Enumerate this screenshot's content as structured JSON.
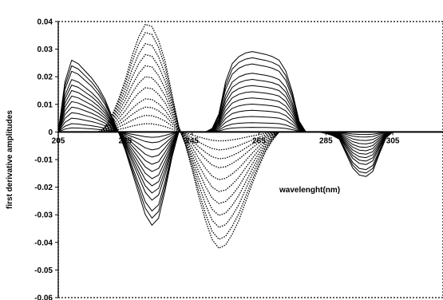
{
  "chart_data": {
    "type": "line",
    "title": "",
    "xlabel": "wavelenght(nm)",
    "ylabel": "first derivative amplitudes",
    "xlim": [
      205,
      320
    ],
    "ylim": [
      -0.06,
      0.04
    ],
    "x_ticks": [
      205,
      225,
      245,
      265,
      285,
      305
    ],
    "x_tick_labels": [
      "205",
      "225",
      "245",
      "265",
      "285",
      "305"
    ],
    "y_ticks": [
      0.04,
      0.03,
      0.02,
      0.01,
      0,
      -0.01,
      -0.02,
      -0.03,
      -0.04,
      -0.05,
      -0.06
    ],
    "y_tick_labels": [
      "0.04",
      "0.03",
      "0.02",
      "0.01",
      "0",
      "-0.01",
      "-0.02",
      "-0.03",
      "-0.04",
      "-0.05",
      "-0.06"
    ],
    "plot_border": "dotted",
    "grid": false,
    "legend": "none",
    "colors": {
      "series": "#000000",
      "background": "#ffffff"
    },
    "families": [
      {
        "style": "solid",
        "x": [
          205,
          207,
          209,
          211,
          213,
          215,
          217,
          219,
          221,
          223,
          225,
          227,
          229,
          231,
          233,
          235,
          237,
          239,
          241,
          243,
          245,
          247,
          249,
          251,
          253,
          255,
          257,
          259,
          261,
          263,
          265,
          267,
          269,
          271,
          273,
          275,
          277,
          279,
          281,
          283,
          285,
          287,
          289,
          291,
          293,
          295,
          297,
          299,
          301,
          303,
          305,
          307,
          309,
          311,
          313,
          315,
          317,
          320
        ],
        "shape": [
          0.0,
          0.7,
          1.0,
          0.95,
          0.85,
          0.75,
          0.62,
          0.45,
          0.22,
          0.0,
          -0.25,
          -0.55,
          -0.85,
          -1.15,
          -1.3,
          -1.2,
          -0.8,
          -0.35,
          0.0,
          0.0,
          0.0,
          0.0,
          0.0,
          0.05,
          0.25,
          0.7,
          0.95,
          1.05,
          1.1,
          1.12,
          1.1,
          1.08,
          1.05,
          1.0,
          0.85,
          0.55,
          0.15,
          0.0,
          0.0,
          0.0,
          -0.02,
          -0.05,
          -0.1,
          -0.3,
          -0.5,
          -0.6,
          -0.62,
          -0.55,
          -0.3,
          -0.08,
          0.0,
          0.0,
          0.0,
          0.0,
          0.0,
          0.0,
          0.0,
          0.0
        ],
        "amplitudes": [
          0.026,
          0.024,
          0.022,
          0.019,
          0.017,
          0.015,
          0.013,
          0.011,
          0.009,
          0.007,
          0.005,
          0.003,
          0.0015
        ]
      },
      {
        "style": "dotted",
        "x": [
          205,
          207,
          209,
          211,
          213,
          215,
          217,
          219,
          221,
          223,
          225,
          227,
          229,
          231,
          233,
          235,
          237,
          239,
          241,
          243,
          245,
          247,
          249,
          251,
          253,
          255,
          257,
          259,
          261,
          263,
          265,
          267,
          269,
          271,
          273,
          275,
          277,
          279,
          281,
          283,
          285,
          287,
          289,
          291,
          293,
          295,
          297,
          299,
          301,
          303,
          305,
          307,
          309,
          311,
          313,
          315,
          317,
          320
        ],
        "shape": [
          0.0,
          0.0,
          0.0,
          0.0,
          0.0,
          0.0,
          0.0,
          0.05,
          0.15,
          0.3,
          0.48,
          0.7,
          0.88,
          1.0,
          0.98,
          0.85,
          0.65,
          0.35,
          0.05,
          -0.12,
          -0.35,
          -0.6,
          -0.82,
          -1.0,
          -1.08,
          -1.05,
          -0.95,
          -0.82,
          -0.65,
          -0.48,
          -0.32,
          -0.18,
          -0.08,
          0.0,
          0.0,
          0.0,
          0.0,
          0.0,
          0.0,
          0.0,
          0.0,
          0.0,
          0.0,
          0.0,
          0.0,
          0.0,
          0.0,
          0.0,
          0.0,
          0.0,
          0.0,
          0.0,
          0.0,
          0.0,
          0.0,
          0.0,
          0.0,
          0.0
        ],
        "amplitudes": [
          0.039,
          0.036,
          0.032,
          0.028,
          0.024,
          0.02,
          0.016,
          0.012,
          0.009,
          0.006,
          0.003
        ]
      }
    ]
  }
}
